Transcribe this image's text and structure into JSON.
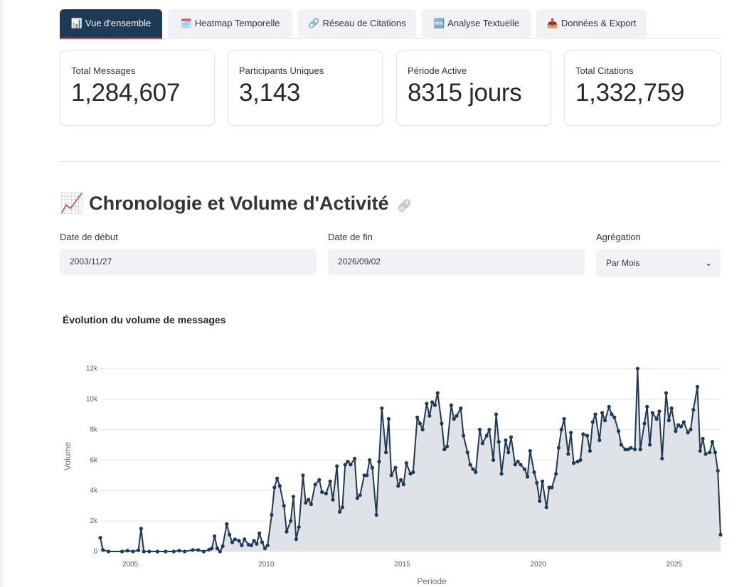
{
  "tabs": [
    {
      "icon": "📊",
      "label": "Vue d'ensemble",
      "active": true
    },
    {
      "icon": "🗓️",
      "label": "Heatmap Temporelle",
      "active": false
    },
    {
      "icon": "🔗",
      "label": "Réseau de Citations",
      "active": false
    },
    {
      "icon": "🔤",
      "label": "Analyse Textuelle",
      "active": false
    },
    {
      "icon": "📥",
      "label": "Données & Export",
      "active": false
    }
  ],
  "metrics": [
    {
      "label": "Total Messages",
      "value": "1,284,607"
    },
    {
      "label": "Participants Uniques",
      "value": "3,143"
    },
    {
      "label": "Période Active",
      "value": "8315 jours"
    },
    {
      "label": "Total Citations",
      "value": "1,332,759"
    }
  ],
  "section": {
    "icon": "📈",
    "title": "Chronologie et Volume d'Activité",
    "link_icon": "link-icon"
  },
  "filters": {
    "start_label": "Date de début",
    "start_value": "2003/11/27",
    "end_label": "Date de fin",
    "end_value": "2026/09/02",
    "agg_label": "Agrégation",
    "agg_value": "Par Mois"
  },
  "chart_title": "Évolution du volume de messages",
  "colors": {
    "line": "#1f3a56",
    "fill": "#dde1e7",
    "active_tab": "#1f3a56",
    "tab_underline": "#e0454f"
  },
  "chart_data": {
    "type": "area",
    "title": "Évolution du volume de messages",
    "xlabel": "Periode",
    "ylabel": "Volume",
    "x_range": [
      2003.9,
      2026.7
    ],
    "ylim": [
      0,
      12500
    ],
    "y_ticks": [
      0,
      2000,
      4000,
      6000,
      8000,
      10000,
      12000
    ],
    "y_tick_labels": [
      "0",
      "2k",
      "4k",
      "6k",
      "8k",
      "10k",
      "12k"
    ],
    "x_ticks": [
      2005,
      2010,
      2015,
      2020,
      2025
    ],
    "x_tick_labels": [
      "2005",
      "2010",
      "2015",
      "2020",
      "2025"
    ],
    "grid": true,
    "series": [
      {
        "points": [
          [
            2003.9,
            900
          ],
          [
            2004.0,
            100
          ],
          [
            2004.2,
            0
          ],
          [
            2004.7,
            0
          ],
          [
            2004.9,
            50
          ],
          [
            2005.1,
            0
          ],
          [
            2005.3,
            80
          ],
          [
            2005.4,
            1500
          ],
          [
            2005.5,
            0
          ],
          [
            2005.7,
            0
          ],
          [
            2006.0,
            0
          ],
          [
            2006.3,
            0
          ],
          [
            2006.6,
            0
          ],
          [
            2006.8,
            50
          ],
          [
            2007.0,
            0
          ],
          [
            2007.3,
            100
          ],
          [
            2007.5,
            100
          ],
          [
            2007.7,
            0
          ],
          [
            2007.9,
            120
          ],
          [
            2008.0,
            200
          ],
          [
            2008.1,
            1000
          ],
          [
            2008.2,
            200
          ],
          [
            2008.3,
            0
          ],
          [
            2008.4,
            350
          ],
          [
            2008.55,
            1800
          ],
          [
            2008.65,
            1100
          ],
          [
            2008.75,
            600
          ],
          [
            2008.85,
            800
          ],
          [
            2009.0,
            700
          ],
          [
            2009.1,
            400
          ],
          [
            2009.2,
            800
          ],
          [
            2009.35,
            450
          ],
          [
            2009.45,
            400
          ],
          [
            2009.55,
            700
          ],
          [
            2009.65,
            500
          ],
          [
            2009.75,
            1200
          ],
          [
            2009.85,
            600
          ],
          [
            2009.95,
            200
          ],
          [
            2010.05,
            400
          ],
          [
            2010.2,
            2400
          ],
          [
            2010.3,
            4200
          ],
          [
            2010.4,
            4800
          ],
          [
            2010.5,
            4300
          ],
          [
            2010.65,
            3000
          ],
          [
            2010.75,
            1300
          ],
          [
            2010.9,
            2000
          ],
          [
            2011.0,
            3600
          ],
          [
            2011.1,
            800
          ],
          [
            2011.2,
            1600
          ],
          [
            2011.35,
            5000
          ],
          [
            2011.45,
            3200
          ],
          [
            2011.55,
            3400
          ],
          [
            2011.65,
            3100
          ],
          [
            2011.8,
            4400
          ],
          [
            2011.95,
            4700
          ],
          [
            2012.05,
            3900
          ],
          [
            2012.2,
            3800
          ],
          [
            2012.35,
            4600
          ],
          [
            2012.45,
            3400
          ],
          [
            2012.6,
            5600
          ],
          [
            2012.7,
            2600
          ],
          [
            2012.8,
            2900
          ],
          [
            2012.9,
            5700
          ],
          [
            2013.0,
            5900
          ],
          [
            2013.1,
            5700
          ],
          [
            2013.25,
            6100
          ],
          [
            2013.35,
            3500
          ],
          [
            2013.45,
            3700
          ],
          [
            2013.6,
            5000
          ],
          [
            2013.7,
            5000
          ],
          [
            2013.8,
            6000
          ],
          [
            2013.9,
            5500
          ],
          [
            2014.05,
            2400
          ],
          [
            2014.15,
            5900
          ],
          [
            2014.25,
            9400
          ],
          [
            2014.4,
            6500
          ],
          [
            2014.5,
            8700
          ],
          [
            2014.6,
            5000
          ],
          [
            2014.75,
            5500
          ],
          [
            2014.85,
            4300
          ],
          [
            2014.95,
            4700
          ],
          [
            2015.05,
            4400
          ],
          [
            2015.15,
            5800
          ],
          [
            2015.3,
            5100
          ],
          [
            2015.4,
            5200
          ],
          [
            2015.55,
            8800
          ],
          [
            2015.65,
            8400
          ],
          [
            2015.75,
            8000
          ],
          [
            2015.9,
            9700
          ],
          [
            2016.0,
            8900
          ],
          [
            2016.1,
            9800
          ],
          [
            2016.2,
            9600
          ],
          [
            2016.3,
            10400
          ],
          [
            2016.45,
            8400
          ],
          [
            2016.55,
            6700
          ],
          [
            2016.65,
            6900
          ],
          [
            2016.8,
            9600
          ],
          [
            2016.9,
            8700
          ],
          [
            2017.0,
            8900
          ],
          [
            2017.15,
            9400
          ],
          [
            2017.25,
            7600
          ],
          [
            2017.4,
            6500
          ],
          [
            2017.5,
            5700
          ],
          [
            2017.6,
            5400
          ],
          [
            2017.7,
            5200
          ],
          [
            2017.85,
            8000
          ],
          [
            2017.95,
            7100
          ],
          [
            2018.1,
            7600
          ],
          [
            2018.2,
            8000
          ],
          [
            2018.35,
            6000
          ],
          [
            2018.45,
            9000
          ],
          [
            2018.55,
            7200
          ],
          [
            2018.65,
            5100
          ],
          [
            2018.8,
            7300
          ],
          [
            2018.9,
            6500
          ],
          [
            2019.0,
            7500
          ],
          [
            2019.15,
            5700
          ],
          [
            2019.25,
            5900
          ],
          [
            2019.35,
            5700
          ],
          [
            2019.5,
            5400
          ],
          [
            2019.6,
            4900
          ],
          [
            2019.7,
            6600
          ],
          [
            2019.85,
            5200
          ],
          [
            2019.95,
            4500
          ],
          [
            2020.05,
            3300
          ],
          [
            2020.15,
            4600
          ],
          [
            2020.3,
            2900
          ],
          [
            2020.4,
            4200
          ],
          [
            2020.5,
            4200
          ],
          [
            2020.65,
            5100
          ],
          [
            2020.75,
            6800
          ],
          [
            2020.85,
            8000
          ],
          [
            2020.95,
            8700
          ],
          [
            2021.1,
            6400
          ],
          [
            2021.2,
            7800
          ],
          [
            2021.3,
            5800
          ],
          [
            2021.45,
            5900
          ],
          [
            2021.55,
            6000
          ],
          [
            2021.65,
            7700
          ],
          [
            2021.8,
            7600
          ],
          [
            2021.9,
            6600
          ],
          [
            2022.0,
            8500
          ],
          [
            2022.1,
            9000
          ],
          [
            2022.25,
            7300
          ],
          [
            2022.35,
            9100
          ],
          [
            2022.45,
            8600
          ],
          [
            2022.6,
            9500
          ],
          [
            2022.7,
            9000
          ],
          [
            2022.8,
            8800
          ],
          [
            2022.95,
            7900
          ],
          [
            2023.05,
            7000
          ],
          [
            2023.2,
            6700
          ],
          [
            2023.3,
            6700
          ],
          [
            2023.4,
            6800
          ],
          [
            2023.55,
            6700
          ],
          [
            2023.65,
            12000
          ],
          [
            2023.75,
            6700
          ],
          [
            2023.9,
            8400
          ],
          [
            2024.0,
            9500
          ],
          [
            2024.1,
            7000
          ],
          [
            2024.2,
            9100
          ],
          [
            2024.35,
            8700
          ],
          [
            2024.45,
            9200
          ],
          [
            2024.55,
            6100
          ],
          [
            2024.7,
            10400
          ],
          [
            2024.8,
            8600
          ],
          [
            2024.9,
            9400
          ],
          [
            2025.05,
            7900
          ],
          [
            2025.15,
            8300
          ],
          [
            2025.25,
            8200
          ],
          [
            2025.35,
            8500
          ],
          [
            2025.5,
            7800
          ],
          [
            2025.6,
            8000
          ],
          [
            2025.7,
            9300
          ],
          [
            2025.85,
            10800
          ],
          [
            2025.95,
            6600
          ],
          [
            2026.05,
            7400
          ],
          [
            2026.15,
            6400
          ],
          [
            2026.3,
            6500
          ],
          [
            2026.4,
            7200
          ],
          [
            2026.5,
            6500
          ],
          [
            2026.6,
            5300
          ],
          [
            2026.7,
            1100
          ]
        ]
      }
    ]
  }
}
